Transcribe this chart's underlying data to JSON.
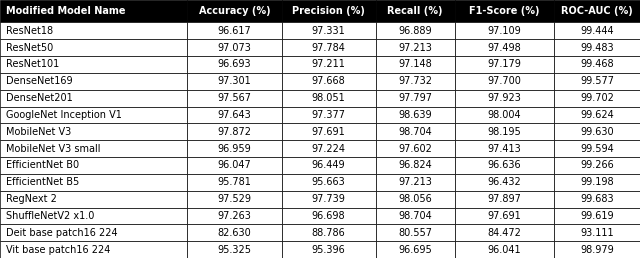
{
  "columns": [
    "Modified Model Name",
    "Accuracy (%)",
    "Precision (%)",
    "Recall (%)",
    "F1-Score (%)",
    "ROC-AUC (%)"
  ],
  "rows": [
    [
      "ResNet18",
      96.617,
      97.331,
      96.889,
      97.109,
      99.444
    ],
    [
      "ResNet50",
      97.073,
      97.784,
      97.213,
      97.498,
      99.483
    ],
    [
      "ResNet101",
      96.693,
      97.211,
      97.148,
      97.179,
      99.468
    ],
    [
      "DenseNet169",
      97.301,
      97.668,
      97.732,
      97.7,
      99.577
    ],
    [
      "DenseNet201",
      97.567,
      98.051,
      97.797,
      97.923,
      99.702
    ],
    [
      "GoogleNet Inception V1",
      97.643,
      97.377,
      98.639,
      98.004,
      99.624
    ],
    [
      "MobileNet V3",
      97.872,
      97.691,
      98.704,
      98.195,
      99.63
    ],
    [
      "MobileNet V3 small",
      96.959,
      97.224,
      97.602,
      97.413,
      99.594
    ],
    [
      "EfficientNet B0",
      96.047,
      96.449,
      96.824,
      96.636,
      99.266
    ],
    [
      "EfficientNet B5",
      95.781,
      95.663,
      97.213,
      96.432,
      99.198
    ],
    [
      "RegNext 2",
      97.529,
      97.739,
      98.056,
      97.897,
      99.683
    ],
    [
      "ShuffleNetV2 x1.0",
      97.263,
      96.698,
      98.704,
      97.691,
      99.619
    ],
    [
      "Deit base patch16 224",
      82.63,
      88.786,
      80.557,
      84.472,
      93.111
    ],
    [
      "Vit base patch16 224",
      95.325,
      95.396,
      96.695,
      96.041,
      98.979
    ]
  ],
  "header_bg": "#000000",
  "header_fg": "#ffffff",
  "body_bg": "#ffffff",
  "body_fg": "#000000",
  "border_color": "#000000",
  "font_size": 7.0,
  "header_font_size": 7.0,
  "fig_width": 6.4,
  "fig_height": 2.58,
  "dpi": 100
}
